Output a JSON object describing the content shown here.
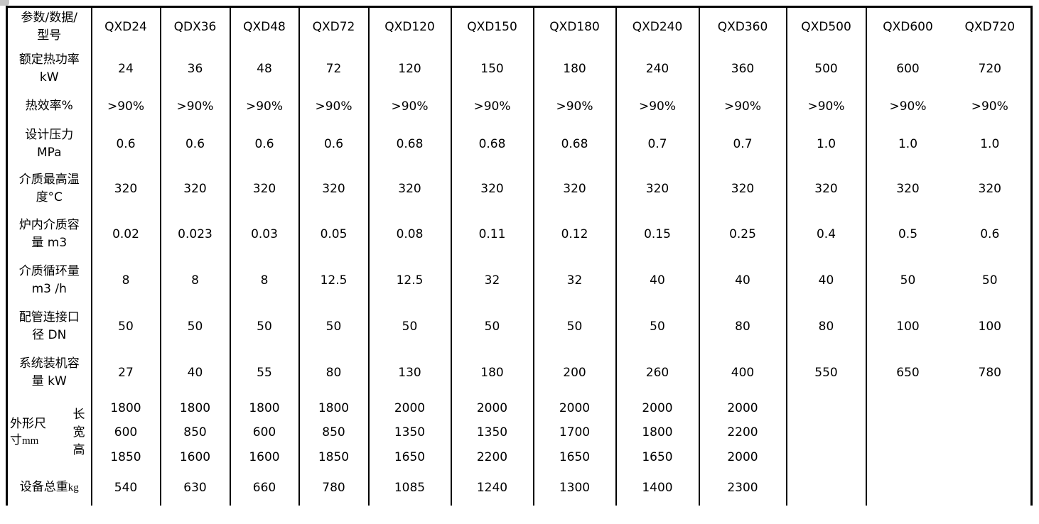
{
  "page": {
    "background": "#ffffff",
    "border_color": "#000000",
    "corner_artifact_color": "#c4c4c4"
  },
  "table": {
    "header": {
      "label_lines": [
        "参数/数据/",
        "型号"
      ],
      "models": [
        "QXD24",
        "QDX36",
        "QXD48",
        "QXD72",
        "QXD120",
        "QXD150",
        "QXD180",
        "QXD240",
        "QXD360",
        "QXD500",
        "QXD600",
        "QXD720"
      ]
    },
    "rows": [
      {
        "id": "rated-power",
        "label_line1": "额定热功率",
        "label_line2": "kW",
        "values": [
          "24",
          "36",
          "48",
          "72",
          "120",
          "150",
          "180",
          "240",
          "360",
          "500",
          "600",
          "720"
        ]
      },
      {
        "id": "efficiency",
        "label_line1": "热效率%",
        "label_line2": "",
        "values": [
          ">90%",
          ">90%",
          ">90%",
          ">90%",
          ">90%",
          ">90%",
          ">90%",
          ">90%",
          ">90%",
          ">90%",
          ">90%",
          ">90%"
        ]
      },
      {
        "id": "design-pressure",
        "label_line1": "设计压力",
        "label_line2": "MPa",
        "values": [
          "0.6",
          "0.6",
          "0.6",
          "0.6",
          "0.68",
          "0.68",
          "0.68",
          "0.7",
          "0.7",
          "1.0",
          "1.0",
          "1.0"
        ]
      },
      {
        "id": "max-temp",
        "label_line1": "介质最高温",
        "label_line2": "度°C",
        "values": [
          "320",
          "320",
          "320",
          "320",
          "320",
          "320",
          "320",
          "320",
          "320",
          "320",
          "320",
          "320"
        ]
      },
      {
        "id": "medium-volume",
        "label_line1": "炉内介质容",
        "label_line2": "量 m3",
        "values": [
          "0.02",
          "0.023",
          "0.03",
          "0.05",
          "0.08",
          "0.11",
          "0.12",
          "0.15",
          "0.25",
          "0.4",
          "0.5",
          "0.6"
        ]
      },
      {
        "id": "circulation",
        "label_line1": "介质循环量",
        "label_line2": "m3 /h",
        "values": [
          "8",
          "8",
          "8",
          "12.5",
          "12.5",
          "32",
          "32",
          "40",
          "40",
          "40",
          "50",
          "50"
        ]
      },
      {
        "id": "pipe-dn",
        "label_line1": "配管连接口",
        "label_line2": "径 DN",
        "values": [
          "50",
          "50",
          "50",
          "50",
          "50",
          "50",
          "50",
          "50",
          "80",
          "80",
          "100",
          "100"
        ]
      },
      {
        "id": "system-capacity",
        "label_line1": "系统装机容",
        "label_line2": "量 kW",
        "values": [
          "27",
          "40",
          "55",
          "80",
          "130",
          "180",
          "200",
          "260",
          "400",
          "550",
          "650",
          "780"
        ]
      }
    ],
    "dimensions": {
      "label_line1": "外形尺",
      "label_line2": "寸",
      "unit": "mm",
      "sub_rows": [
        {
          "id": "dim-length",
          "label": "长",
          "values": [
            "1800",
            "1800",
            "1800",
            "1800",
            "2000",
            "2000",
            "2000",
            "2000",
            "2000",
            "",
            "",
            ""
          ]
        },
        {
          "id": "dim-width",
          "label": "宽",
          "values": [
            "600",
            "850",
            "600",
            "850",
            "1350",
            "1350",
            "1700",
            "1800",
            "2200",
            "",
            "",
            ""
          ]
        },
        {
          "id": "dim-height",
          "label": "高",
          "values": [
            "1850",
            "1600",
            "1600",
            "1850",
            "1650",
            "2200",
            "1650",
            "1650",
            "2000",
            "",
            "",
            ""
          ]
        }
      ]
    },
    "weight": {
      "id": "total-weight",
      "label": "设备总重",
      "unit": "kg",
      "values": [
        "540",
        "630",
        "660",
        "780",
        "1085",
        "1240",
        "1300",
        "1400",
        "2300",
        "",
        "",
        ""
      ]
    }
  }
}
